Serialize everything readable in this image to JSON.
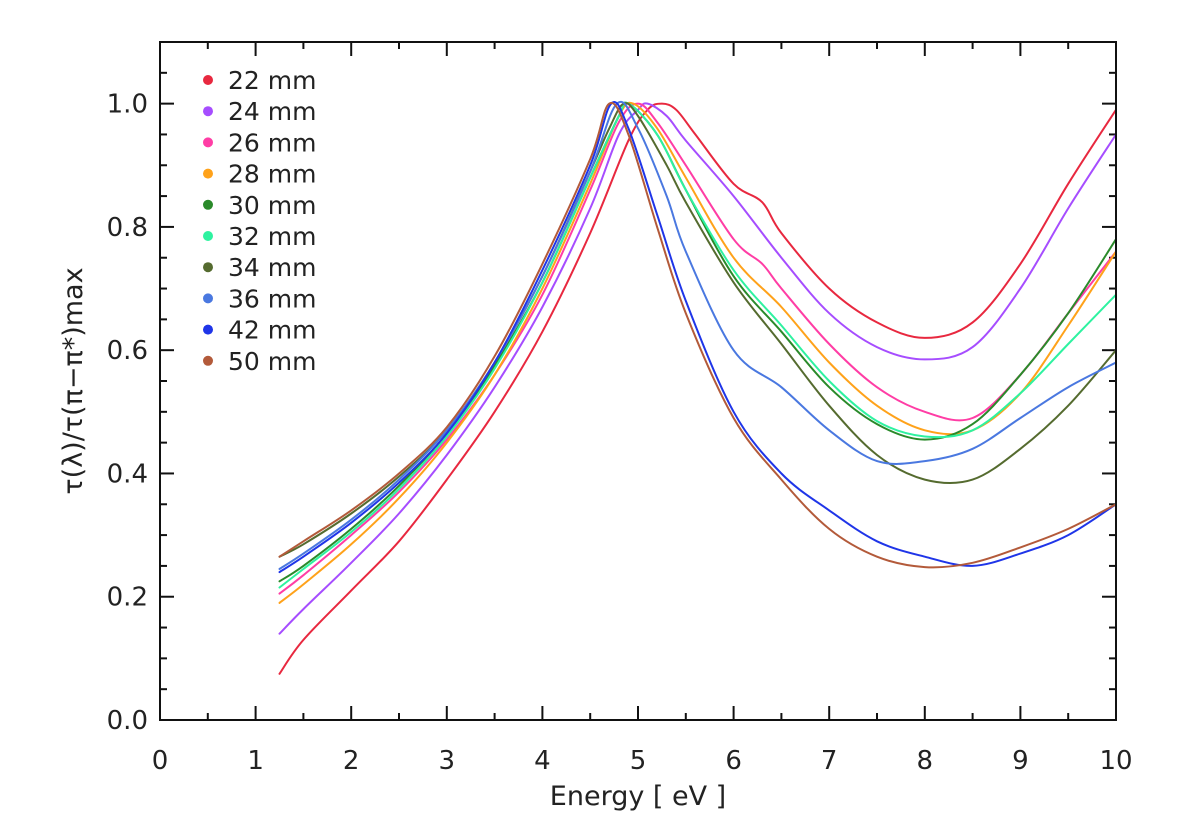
{
  "chart_data": {
    "type": "line",
    "xlabel": "Energy [ eV ]",
    "ylabel": "τ(λ)/τ(π−π*)max",
    "xlim": [
      0,
      10
    ],
    "ylim": [
      0,
      1.1
    ],
    "xticks": [
      "0",
      "1",
      "2",
      "3",
      "4",
      "5",
      "6",
      "7",
      "8",
      "9",
      "10"
    ],
    "yticks": [
      "0.0",
      "0.2",
      "0.4",
      "0.6",
      "0.8",
      "1.0"
    ],
    "ytick_values": [
      0,
      0.2,
      0.4,
      0.6,
      0.8,
      1.0
    ],
    "grid": false,
    "legend_position": "top-left",
    "series": [
      {
        "name": "22 mm",
        "color": "#e8283f",
        "x": [
          1.25,
          1.5,
          2.0,
          2.5,
          3.0,
          3.5,
          4.0,
          4.5,
          4.9,
          5.1,
          5.25,
          5.4,
          5.6,
          6.0,
          6.3,
          6.5,
          7.0,
          7.5,
          8.0,
          8.5,
          9.0,
          9.5,
          10.0
        ],
        "y": [
          0.075,
          0.13,
          0.21,
          0.29,
          0.39,
          0.5,
          0.63,
          0.79,
          0.94,
          0.99,
          1.0,
          0.99,
          0.95,
          0.87,
          0.84,
          0.79,
          0.7,
          0.645,
          0.62,
          0.645,
          0.74,
          0.87,
          0.99
        ]
      },
      {
        "name": "24 mm",
        "color": "#a64dff",
        "x": [
          1.25,
          1.5,
          2.0,
          2.5,
          3.0,
          3.5,
          4.0,
          4.5,
          4.8,
          5.0,
          5.1,
          5.3,
          5.5,
          6.0,
          6.5,
          7.0,
          7.5,
          8.0,
          8.5,
          9.0,
          9.5,
          10.0
        ],
        "y": [
          0.14,
          0.18,
          0.255,
          0.335,
          0.43,
          0.54,
          0.67,
          0.83,
          0.95,
          0.99,
          1.0,
          0.98,
          0.94,
          0.85,
          0.75,
          0.66,
          0.605,
          0.585,
          0.605,
          0.7,
          0.83,
          0.95
        ]
      },
      {
        "name": "26 mm",
        "color": "#ff3da5",
        "x": [
          1.25,
          1.5,
          2.0,
          2.5,
          3.0,
          3.5,
          4.0,
          4.5,
          4.8,
          5.0,
          5.2,
          5.5,
          6.0,
          6.3,
          6.5,
          7.0,
          7.5,
          8.0,
          8.5,
          9.0,
          9.5,
          10.0
        ],
        "y": [
          0.205,
          0.235,
          0.3,
          0.37,
          0.455,
          0.56,
          0.69,
          0.86,
          0.97,
          1.0,
          0.97,
          0.9,
          0.78,
          0.74,
          0.7,
          0.61,
          0.54,
          0.5,
          0.49,
          0.56,
          0.66,
          0.76
        ]
      },
      {
        "name": "28 mm",
        "color": "#ffa21a",
        "x": [
          1.25,
          1.5,
          2.0,
          2.5,
          3.0,
          3.5,
          4.0,
          4.5,
          4.8,
          4.95,
          5.2,
          5.5,
          6.0,
          6.5,
          7.0,
          7.5,
          8.0,
          8.5,
          9.0,
          9.5,
          10.0
        ],
        "y": [
          0.19,
          0.22,
          0.285,
          0.36,
          0.45,
          0.56,
          0.7,
          0.87,
          0.98,
          1.0,
          0.96,
          0.88,
          0.75,
          0.67,
          0.58,
          0.51,
          0.47,
          0.47,
          0.53,
          0.64,
          0.76
        ]
      },
      {
        "name": "30 mm",
        "color": "#2a8a2a",
        "x": [
          1.25,
          1.5,
          2.0,
          2.5,
          3.0,
          3.5,
          4.0,
          4.5,
          4.8,
          4.9,
          5.2,
          5.5,
          6.0,
          6.5,
          7.0,
          7.5,
          8.0,
          8.5,
          9.0,
          9.5,
          10.0
        ],
        "y": [
          0.225,
          0.25,
          0.31,
          0.38,
          0.465,
          0.575,
          0.71,
          0.88,
          0.98,
          1.0,
          0.95,
          0.86,
          0.72,
          0.63,
          0.54,
          0.48,
          0.455,
          0.48,
          0.56,
          0.66,
          0.78
        ]
      },
      {
        "name": "32 mm",
        "color": "#2ef2a0",
        "x": [
          1.25,
          1.5,
          2.0,
          2.5,
          3.0,
          3.5,
          4.0,
          4.5,
          4.8,
          4.9,
          5.2,
          5.5,
          6.0,
          6.5,
          7.0,
          7.5,
          8.0,
          8.5,
          9.0,
          9.5,
          10.0
        ],
        "y": [
          0.215,
          0.245,
          0.305,
          0.375,
          0.46,
          0.57,
          0.71,
          0.88,
          0.98,
          1.0,
          0.95,
          0.86,
          0.73,
          0.64,
          0.55,
          0.485,
          0.46,
          0.47,
          0.53,
          0.61,
          0.69
        ]
      },
      {
        "name": "34 mm",
        "color": "#556b2f",
        "x": [
          1.25,
          1.5,
          2.0,
          2.5,
          3.0,
          3.5,
          4.0,
          4.5,
          4.7,
          4.85,
          5.0,
          5.3,
          5.5,
          6.0,
          6.5,
          7.0,
          7.5,
          8.0,
          8.5,
          9.0,
          9.5,
          10.0
        ],
        "y": [
          0.265,
          0.285,
          0.335,
          0.395,
          0.47,
          0.58,
          0.72,
          0.89,
          0.96,
          1.0,
          0.98,
          0.9,
          0.84,
          0.71,
          0.61,
          0.51,
          0.43,
          0.39,
          0.39,
          0.44,
          0.51,
          0.6
        ]
      },
      {
        "name": "36 mm",
        "color": "#4a78e0",
        "x": [
          1.25,
          1.5,
          2.0,
          2.5,
          3.0,
          3.5,
          4.0,
          4.5,
          4.78,
          5.0,
          5.3,
          5.5,
          6.0,
          6.5,
          7.0,
          7.5,
          8.0,
          8.5,
          9.0,
          9.5,
          10.0
        ],
        "y": [
          0.245,
          0.27,
          0.325,
          0.39,
          0.47,
          0.58,
          0.72,
          0.89,
          1.0,
          0.96,
          0.85,
          0.76,
          0.6,
          0.54,
          0.47,
          0.42,
          0.42,
          0.44,
          0.49,
          0.54,
          0.58
        ]
      },
      {
        "name": "42 mm",
        "color": "#1f35e8",
        "x": [
          1.25,
          1.5,
          2.0,
          2.5,
          3.0,
          3.5,
          4.0,
          4.5,
          4.72,
          4.9,
          5.2,
          5.5,
          6.0,
          6.5,
          7.0,
          7.5,
          8.0,
          8.5,
          9.0,
          9.5,
          10.0
        ],
        "y": [
          0.24,
          0.265,
          0.32,
          0.385,
          0.465,
          0.58,
          0.73,
          0.9,
          1.0,
          0.96,
          0.82,
          0.68,
          0.5,
          0.4,
          0.34,
          0.29,
          0.265,
          0.25,
          0.27,
          0.3,
          0.35
        ]
      },
      {
        "name": "50 mm",
        "color": "#b35a3a",
        "x": [
          1.25,
          1.5,
          2.0,
          2.5,
          3.0,
          3.5,
          4.0,
          4.5,
          4.7,
          4.9,
          5.2,
          5.5,
          6.0,
          6.5,
          7.0,
          7.5,
          8.0,
          8.5,
          9.0,
          9.5,
          10.0
        ],
        "y": [
          0.265,
          0.29,
          0.34,
          0.4,
          0.475,
          0.59,
          0.74,
          0.91,
          1.0,
          0.95,
          0.8,
          0.66,
          0.49,
          0.39,
          0.31,
          0.265,
          0.248,
          0.255,
          0.28,
          0.31,
          0.35
        ]
      }
    ]
  }
}
